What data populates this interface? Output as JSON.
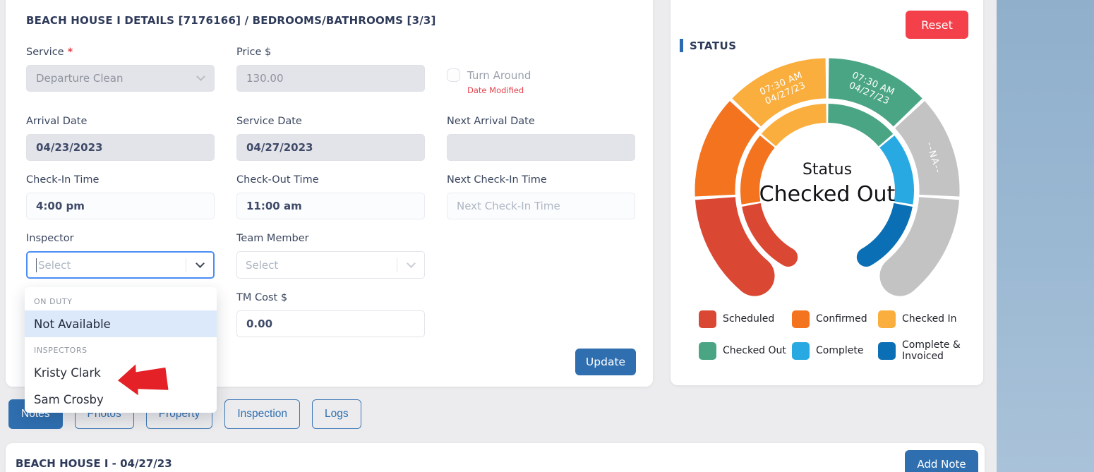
{
  "colors": {
    "accent_blue": "#2F6FB0",
    "focus_blue": "#4B8CF5",
    "reset_red": "#F4404A",
    "annotation_red": "#E32127",
    "highlight_row": "#DBE9FB",
    "backdrop_blue": "#93B1CD",
    "na_gray": "#C3C3C3"
  },
  "details_card": {
    "title": "BEACH HOUSE I DETAILS [7176166] / BEDROOMS/BATHROOMS [3/3]",
    "service": {
      "label": "Service",
      "value": "Departure Clean"
    },
    "price": {
      "label": "Price $",
      "value": "130.00"
    },
    "turn_around": {
      "label": "Turn Around",
      "note": "Date Modified",
      "checked": false
    },
    "arrival_date": {
      "label": "Arrival Date",
      "value": "04/23/2023"
    },
    "service_date": {
      "label": "Service Date",
      "value": "04/27/2023"
    },
    "next_arrival_date": {
      "label": "Next Arrival Date",
      "value": ""
    },
    "check_in_time": {
      "label": "Check-In Time",
      "value": "4:00 pm"
    },
    "check_out_time": {
      "label": "Check-Out Time",
      "value": "11:00 am"
    },
    "next_check_in_time": {
      "label": "Next Check-In Time",
      "placeholder": "Next Check-In Time"
    },
    "inspector": {
      "label": "Inspector",
      "placeholder": "Select"
    },
    "team_member": {
      "label": "Team Member",
      "placeholder": "Select"
    },
    "tm_cost": {
      "label": "TM Cost $",
      "value": "0.00"
    },
    "update_button": "Update"
  },
  "inspector_dropdown": {
    "groups": [
      {
        "label": "ON DUTY",
        "options": [
          {
            "name": "Not Available",
            "highlighted": true
          }
        ]
      },
      {
        "label": "INSPECTORS",
        "options": [
          {
            "name": "Kristy Clark",
            "highlighted": false
          },
          {
            "name": "Sam Crosby",
            "highlighted": false
          }
        ]
      }
    ]
  },
  "status_card": {
    "reset_button": "Reset",
    "title": "STATUS",
    "chart_data": {
      "type": "gauge-donut",
      "center_title": "Status",
      "center_value": "Checked Out",
      "statuses": [
        "Scheduled",
        "Confirmed",
        "Checked In",
        "Checked Out",
        "Complete",
        "Complete & Invoiced"
      ],
      "colors": [
        "#DA4733",
        "#F4731F",
        "#FAAE3D",
        "#4AA584",
        "#29A9E1",
        "#0B6FB5"
      ],
      "reached": [
        true,
        true,
        true,
        true,
        false,
        false
      ],
      "timeline_labels": [
        "",
        "",
        "07:30 AM|04/27/23",
        "07:30 AM|04/27/23",
        "--NA--",
        ""
      ],
      "na_color": "#C3C3C3",
      "legend_position": "bottom",
      "legend": [
        {
          "label": "Scheduled",
          "color": "#DA4733"
        },
        {
          "label": "Confirmed",
          "color": "#F4731F"
        },
        {
          "label": "Checked In",
          "color": "#FAAE3D"
        },
        {
          "label": "Checked Out",
          "color": "#4AA584"
        },
        {
          "label": "Complete",
          "color": "#29A9E1"
        },
        {
          "label": "Complete & Invoiced",
          "color": "#0B6FB5"
        }
      ]
    }
  },
  "tabs": [
    {
      "label": "Notes",
      "active": true
    },
    {
      "label": "Photos",
      "active": false
    },
    {
      "label": "Property",
      "active": false
    },
    {
      "label": "Inspection",
      "active": false
    },
    {
      "label": "Logs",
      "active": false
    }
  ],
  "notes_card": {
    "title": "BEACH HOUSE I - 04/27/23",
    "add_note_button": "Add Note"
  }
}
